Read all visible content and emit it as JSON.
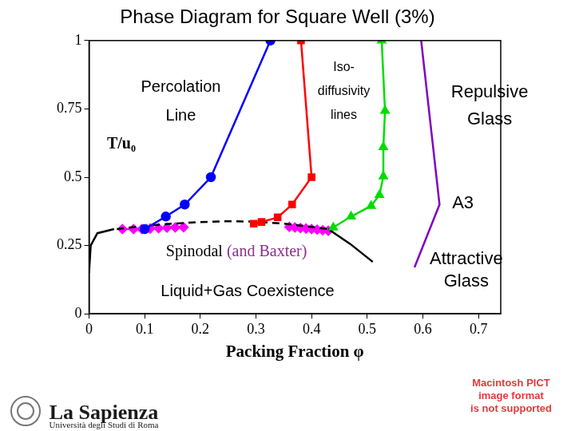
{
  "chart_data": {
    "type": "scatter",
    "title": "Phase Diagram for Square Well (3%)",
    "x_label": "Packing Fraction φ",
    "y_label": "T/u₀",
    "xlim": [
      0,
      0.74
    ],
    "ylim": [
      0,
      1
    ],
    "xticks": [
      0,
      0.1,
      0.2,
      0.3,
      0.4,
      0.5,
      0.6,
      0.7
    ],
    "yticks": [
      0,
      0.25,
      0.5,
      0.75,
      1
    ],
    "grid": false,
    "series": [
      {
        "color": "#0000ff",
        "marker": "circle",
        "line_style": "solid",
        "x": [
          0.1,
          0.138,
          0.172,
          0.219,
          0.326
        ],
        "values": [
          0.31,
          0.356,
          0.4,
          0.5,
          1.0
        ]
      },
      {
        "color": "#ff0000",
        "marker": "square",
        "line_style": "solid",
        "x": [
          0.296,
          0.31,
          0.339,
          0.365,
          0.4,
          0.381
        ],
        "values": [
          0.33,
          0.336,
          0.353,
          0.4,
          0.5,
          1.0
        ]
      },
      {
        "color": "#00dd00",
        "marker": "triangle",
        "line_style": "solid",
        "x": [
          0.439,
          0.471,
          0.507,
          0.522,
          0.529,
          0.529,
          0.532,
          0.526
        ],
        "values": [
          0.316,
          0.356,
          0.395,
          0.435,
          0.503,
          0.61,
          0.743,
          1.0
        ]
      },
      {
        "color": "#8000c0",
        "marker": "none",
        "line_style": "solid",
        "x": [
          0.597,
          0.63,
          0.585
        ],
        "values": [
          1.0,
          0.4,
          0.17
        ]
      },
      {
        "color": "#000000",
        "marker": "none",
        "line_style": "dashed",
        "x": [
          0.05,
          0.1,
          0.15,
          0.2,
          0.25,
          0.3,
          0.35,
          0.4,
          0.43
        ],
        "values": [
          0.31,
          0.322,
          0.33,
          0.336,
          0.339,
          0.337,
          0.33,
          0.318,
          0.31
        ]
      },
      {
        "color": "#000000",
        "marker": "none",
        "line_style": "solid",
        "x": [
          0.43,
          0.47,
          0.51
        ],
        "values": [
          0.31,
          0.255,
          0.19
        ]
      },
      {
        "color": "#000000",
        "marker": "none",
        "line_style": "solid",
        "x": [
          0.045,
          0.015,
          0.003,
          0.0
        ],
        "values": [
          0.31,
          0.295,
          0.25,
          0.15
        ]
      },
      {
        "color": "#ff00ff",
        "marker": "diamond",
        "line_style": "solid",
        "x": [
          0.06,
          0.08,
          0.095,
          0.11,
          0.125,
          0.14,
          0.155,
          0.17
        ],
        "values": [
          0.31,
          0.31,
          0.31,
          0.312,
          0.313,
          0.315,
          0.316,
          0.317
        ]
      },
      {
        "color": "#ff00ff",
        "marker": "diamond",
        "line_style": "solid",
        "x": [
          0.36,
          0.37,
          0.38,
          0.39,
          0.4,
          0.41,
          0.42,
          0.43
        ],
        "values": [
          0.318,
          0.316,
          0.314,
          0.312,
          0.31,
          0.308,
          0.306,
          0.304
        ]
      }
    ],
    "annotations": [
      "Percolation\nLine",
      "Iso-\ndiffusivity\nlines",
      "Repulsive\nGlass",
      "A3",
      "Spinodal (and Baxter)",
      "Liquid+Gas Coexistence",
      "Attractive\nGlass",
      "La Sapienza",
      "Università degli Studi di Roma",
      "Macintosh PICT\nimage format\nis not supported"
    ]
  }
}
